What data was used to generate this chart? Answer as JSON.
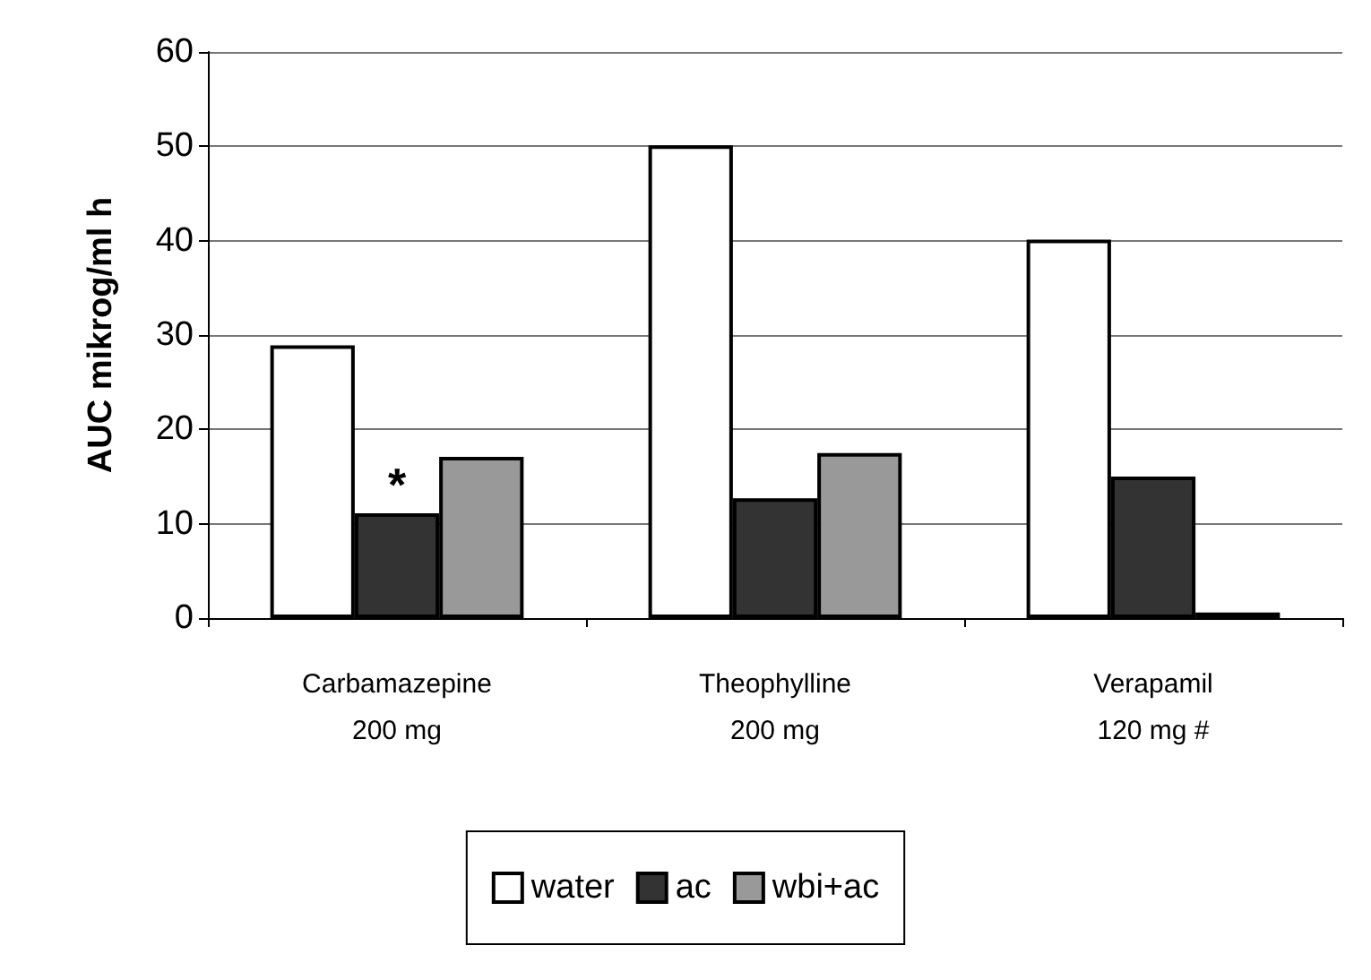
{
  "chart_data": {
    "type": "bar",
    "ylabel": "AUC mikrog/ml h",
    "categories": [
      "Carbamazepine\n200 mg",
      "Theophylline\n200 mg",
      "Verapamil\n120 mg #"
    ],
    "series": [
      {
        "name": "water",
        "color": "#ffffff",
        "values": [
          28.9,
          50.1,
          40.1
        ]
      },
      {
        "name": "ac",
        "color": "#333333",
        "values": [
          11.1,
          12.7,
          15.0
        ]
      },
      {
        "name": "wbi+ac",
        "color": "#999999",
        "values": [
          17.1,
          17.5,
          0.6
        ]
      }
    ],
    "ylim": [
      0,
      60
    ],
    "yticks": [
      0,
      10,
      20,
      30,
      40,
      50,
      60
    ],
    "grid": "y",
    "legend": "bottom",
    "annotations": [
      "*"
    ]
  }
}
